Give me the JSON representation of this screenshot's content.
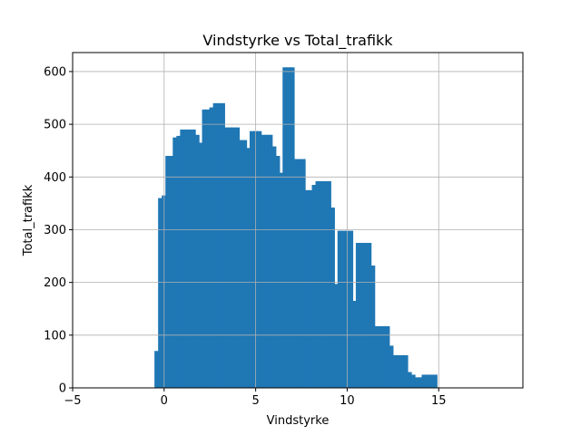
{
  "chart_data": {
    "type": "bar",
    "title": "Vindstyrke vs Total_trafikk",
    "xlabel": "Vindstyrke",
    "ylabel": "Total_trafikk",
    "xlim": [
      -5,
      19.6
    ],
    "ylim": [
      0,
      636
    ],
    "xticks": [
      -5,
      0,
      5,
      10,
      15
    ],
    "xtick_labels": [
      "−5",
      "0",
      "5",
      "10",
      "15"
    ],
    "yticks": [
      0,
      100,
      200,
      300,
      400,
      500,
      600
    ],
    "ytick_labels": [
      "0",
      "100",
      "200",
      "300",
      "400",
      "500",
      "600"
    ],
    "grid": true,
    "bar_width": 0.26,
    "colors": {
      "bars": "#1f77b4",
      "grid": "#b0b0b0",
      "axes": "#000000"
    },
    "series": [
      {
        "x": [
          -0.4,
          -0.2,
          0.0,
          0.2,
          0.4,
          0.6,
          0.8,
          1.0,
          1.2,
          1.4,
          1.6,
          1.8,
          2.0,
          2.2,
          2.4,
          2.6,
          2.8,
          3.0,
          3.2,
          3.4,
          3.6,
          3.8,
          4.0,
          4.2,
          4.4,
          4.6,
          4.8,
          5.0,
          5.2,
          5.4,
          5.6,
          5.8,
          6.0,
          6.2,
          6.4,
          6.6,
          6.8,
          7.0,
          7.2,
          7.4,
          7.6,
          7.8,
          8.0,
          8.2,
          8.4,
          8.6,
          8.8,
          9.0,
          9.2,
          9.4,
          9.6,
          9.8,
          10.0,
          10.2,
          10.4,
          10.6,
          10.8,
          11.0,
          11.2,
          11.4,
          11.6,
          11.8,
          12.0,
          12.2,
          12.4,
          12.6,
          12.8,
          13.0,
          13.2,
          13.4,
          13.6,
          13.8,
          14.0,
          14.2,
          14.4,
          14.6,
          14.8
        ],
        "values": [
          70,
          360,
          365,
          440,
          440,
          475,
          478,
          490,
          490,
          490,
          490,
          480,
          465,
          528,
          528,
          532,
          540,
          540,
          540,
          494,
          494,
          494,
          494,
          470,
          470,
          455,
          487,
          487,
          487,
          480,
          480,
          480,
          458,
          440,
          408,
          608,
          608,
          608,
          434,
          434,
          434,
          375,
          375,
          385,
          392,
          392,
          392,
          392,
          342,
          197,
          298,
          298,
          298,
          298,
          165,
          275,
          275,
          275,
          275,
          232,
          117,
          117,
          117,
          117,
          80,
          62,
          62,
          62,
          62,
          30,
          25,
          20,
          20,
          25,
          25,
          25,
          25
        ]
      }
    ]
  }
}
